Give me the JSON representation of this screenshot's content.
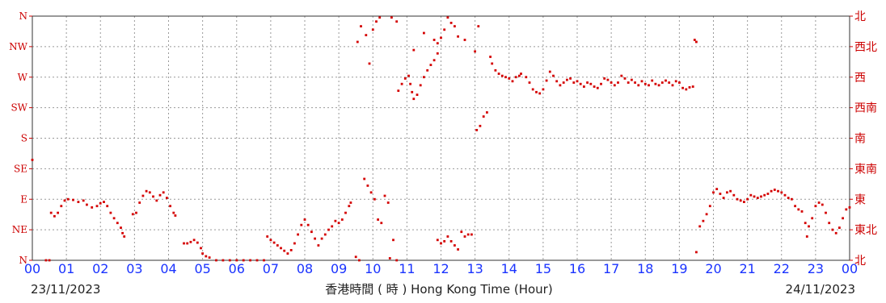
{
  "colors": {
    "series": "#d40000",
    "axis_labels": "#cc0000",
    "x_ticks": "#1a33ff",
    "grid": "#999999",
    "text": "#222222"
  },
  "footer": {
    "date_start": "23/11/2023",
    "xlabel": "香港時間 ( 時 ) Hong Kong Time (Hour)",
    "date_end": "24/11/2023"
  },
  "chart_data": {
    "type": "scatter",
    "title": "",
    "xlabel": "香港時間 ( 時 ) Hong Kong Time (Hour)",
    "ylabel": "",
    "xlim": [
      0,
      24
    ],
    "ylim": [
      0,
      360
    ],
    "grid": true,
    "x_tick_labels": [
      "00",
      "01",
      "02",
      "03",
      "04",
      "05",
      "06",
      "07",
      "08",
      "09",
      "10",
      "11",
      "12",
      "13",
      "14",
      "15",
      "16",
      "17",
      "18",
      "19",
      "20",
      "21",
      "22",
      "23",
      "00"
    ],
    "y_tick_labels_left": [
      "N",
      "NE",
      "E",
      "SE",
      "S",
      "SW",
      "W",
      "NW",
      "N"
    ],
    "y_tick_labels_right": [
      "北",
      "東北",
      "東",
      "東南",
      "南",
      "西南",
      "西",
      "西北",
      "北"
    ],
    "series": [
      {
        "color": "#d40000",
        "points": [
          [
            0.0,
            148
          ],
          [
            0.4,
            0
          ],
          [
            0.5,
            0
          ],
          [
            0.55,
            70
          ],
          [
            0.65,
            65
          ],
          [
            0.75,
            70
          ],
          [
            0.85,
            80
          ],
          [
            0.95,
            88
          ],
          [
            1.05,
            90
          ],
          [
            1.2,
            89
          ],
          [
            1.35,
            86
          ],
          [
            1.5,
            88
          ],
          [
            1.6,
            82
          ],
          [
            1.75,
            78
          ],
          [
            1.9,
            80
          ],
          [
            2.0,
            84
          ],
          [
            2.1,
            86
          ],
          [
            2.2,
            80
          ],
          [
            2.3,
            70
          ],
          [
            2.4,
            62
          ],
          [
            2.5,
            55
          ],
          [
            2.6,
            48
          ],
          [
            2.65,
            40
          ],
          [
            2.7,
            35
          ],
          [
            2.95,
            68
          ],
          [
            3.05,
            70
          ],
          [
            3.15,
            85
          ],
          [
            3.25,
            95
          ],
          [
            3.35,
            102
          ],
          [
            3.45,
            100
          ],
          [
            3.55,
            94
          ],
          [
            3.65,
            88
          ],
          [
            3.75,
            96
          ],
          [
            3.85,
            100
          ],
          [
            3.95,
            92
          ],
          [
            4.05,
            80
          ],
          [
            4.15,
            70
          ],
          [
            4.2,
            66
          ],
          [
            4.45,
            25
          ],
          [
            4.55,
            25
          ],
          [
            4.65,
            27
          ],
          [
            4.75,
            30
          ],
          [
            4.85,
            26
          ],
          [
            4.95,
            18
          ],
          [
            5.0,
            10
          ],
          [
            5.1,
            6
          ],
          [
            5.2,
            4
          ],
          [
            5.4,
            0
          ],
          [
            5.6,
            0
          ],
          [
            5.8,
            0
          ],
          [
            6.0,
            0
          ],
          [
            6.2,
            0
          ],
          [
            6.4,
            0
          ],
          [
            6.6,
            0
          ],
          [
            6.8,
            0
          ],
          [
            6.9,
            35
          ],
          [
            7.0,
            30
          ],
          [
            7.1,
            26
          ],
          [
            7.2,
            22
          ],
          [
            7.3,
            18
          ],
          [
            7.4,
            14
          ],
          [
            7.5,
            10
          ],
          [
            7.6,
            15
          ],
          [
            7.7,
            25
          ],
          [
            7.8,
            38
          ],
          [
            7.9,
            52
          ],
          [
            8.0,
            60
          ],
          [
            8.1,
            52
          ],
          [
            8.2,
            42
          ],
          [
            8.3,
            32
          ],
          [
            8.4,
            22
          ],
          [
            8.5,
            32
          ],
          [
            8.6,
            38
          ],
          [
            8.7,
            45
          ],
          [
            8.8,
            50
          ],
          [
            8.9,
            58
          ],
          [
            9.0,
            55
          ],
          [
            9.1,
            60
          ],
          [
            9.2,
            70
          ],
          [
            9.3,
            80
          ],
          [
            9.35,
            85
          ],
          [
            9.5,
            5
          ],
          [
            9.6,
            0
          ],
          [
            9.75,
            120
          ],
          [
            9.85,
            110
          ],
          [
            9.95,
            100
          ],
          [
            10.05,
            90
          ],
          [
            10.15,
            60
          ],
          [
            10.25,
            55
          ],
          [
            10.35,
            95
          ],
          [
            10.45,
            85
          ],
          [
            10.5,
            3
          ],
          [
            10.6,
            30
          ],
          [
            10.7,
            0
          ],
          [
            9.55,
            322
          ],
          [
            9.65,
            345
          ],
          [
            9.8,
            332
          ],
          [
            9.9,
            290
          ],
          [
            10.0,
            340
          ],
          [
            10.1,
            352
          ],
          [
            10.2,
            358
          ],
          [
            10.55,
            358
          ],
          [
            10.7,
            352
          ],
          [
            11.2,
            310
          ],
          [
            11.5,
            335
          ],
          [
            11.8,
            325
          ],
          [
            11.9,
            320
          ],
          [
            12.0,
            328
          ],
          [
            12.1,
            340
          ],
          [
            12.2,
            358
          ],
          [
            12.3,
            350
          ],
          [
            12.4,
            345
          ],
          [
            12.5,
            330
          ],
          [
            12.7,
            325
          ],
          [
            13.0,
            308
          ],
          [
            13.1,
            345
          ],
          [
            10.75,
            250
          ],
          [
            10.85,
            260
          ],
          [
            10.95,
            268
          ],
          [
            11.05,
            272
          ],
          [
            11.1,
            260
          ],
          [
            11.15,
            248
          ],
          [
            11.2,
            238
          ],
          [
            11.3,
            244
          ],
          [
            11.4,
            258
          ],
          [
            11.5,
            270
          ],
          [
            11.6,
            280
          ],
          [
            11.7,
            288
          ],
          [
            11.8,
            295
          ],
          [
            11.9,
            305
          ],
          [
            11.9,
            30
          ],
          [
            12.0,
            25
          ],
          [
            12.1,
            28
          ],
          [
            12.2,
            35
          ],
          [
            12.3,
            28
          ],
          [
            12.4,
            22
          ],
          [
            12.5,
            16
          ],
          [
            12.6,
            42
          ],
          [
            12.7,
            35
          ],
          [
            12.8,
            38
          ],
          [
            12.9,
            38
          ],
          [
            13.05,
            192
          ],
          [
            13.15,
            198
          ],
          [
            13.25,
            212
          ],
          [
            13.35,
            218
          ],
          [
            13.45,
            300
          ],
          [
            13.5,
            290
          ],
          [
            13.6,
            280
          ],
          [
            13.7,
            275
          ],
          [
            13.8,
            272
          ],
          [
            13.9,
            270
          ],
          [
            14.0,
            268
          ],
          [
            14.1,
            264
          ],
          [
            14.2,
            270
          ],
          [
            14.3,
            272
          ],
          [
            14.35,
            275
          ],
          [
            14.5,
            270
          ],
          [
            14.6,
            262
          ],
          [
            14.7,
            252
          ],
          [
            14.8,
            248
          ],
          [
            14.9,
            246
          ],
          [
            15.0,
            252
          ],
          [
            15.1,
            265
          ],
          [
            15.2,
            278
          ],
          [
            15.3,
            272
          ],
          [
            15.4,
            264
          ],
          [
            15.5,
            258
          ],
          [
            15.6,
            262
          ],
          [
            15.7,
            266
          ],
          [
            15.8,
            268
          ],
          [
            15.9,
            262
          ],
          [
            16.0,
            264
          ],
          [
            16.1,
            260
          ],
          [
            16.2,
            256
          ],
          [
            16.3,
            262
          ],
          [
            16.4,
            260
          ],
          [
            16.5,
            256
          ],
          [
            16.6,
            254
          ],
          [
            16.7,
            260
          ],
          [
            16.8,
            268
          ],
          [
            16.9,
            266
          ],
          [
            17.0,
            262
          ],
          [
            17.1,
            258
          ],
          [
            17.2,
            262
          ],
          [
            17.3,
            272
          ],
          [
            17.4,
            268
          ],
          [
            17.5,
            262
          ],
          [
            17.6,
            266
          ],
          [
            17.7,
            262
          ],
          [
            17.8,
            258
          ],
          [
            17.9,
            264
          ],
          [
            18.0,
            260
          ],
          [
            18.1,
            258
          ],
          [
            18.2,
            265
          ],
          [
            18.3,
            260
          ],
          [
            18.4,
            258
          ],
          [
            18.5,
            262
          ],
          [
            18.6,
            265
          ],
          [
            18.7,
            262
          ],
          [
            18.8,
            258
          ],
          [
            18.9,
            264
          ],
          [
            19.0,
            262
          ],
          [
            19.1,
            254
          ],
          [
            19.2,
            252
          ],
          [
            19.3,
            255
          ],
          [
            19.4,
            256
          ],
          [
            19.45,
            325
          ],
          [
            19.5,
            322
          ],
          [
            19.5,
            12
          ],
          [
            19.6,
            50
          ],
          [
            19.7,
            58
          ],
          [
            19.8,
            68
          ],
          [
            19.9,
            80
          ],
          [
            20.0,
            100
          ],
          [
            20.1,
            105
          ],
          [
            20.2,
            98
          ],
          [
            20.3,
            92
          ],
          [
            20.4,
            100
          ],
          [
            20.5,
            102
          ],
          [
            20.6,
            96
          ],
          [
            20.7,
            90
          ],
          [
            20.8,
            88
          ],
          [
            20.9,
            86
          ],
          [
            21.0,
            90
          ],
          [
            21.1,
            96
          ],
          [
            21.2,
            94
          ],
          [
            21.3,
            92
          ],
          [
            21.4,
            94
          ],
          [
            21.5,
            96
          ],
          [
            21.6,
            98
          ],
          [
            21.7,
            102
          ],
          [
            21.8,
            104
          ],
          [
            21.9,
            102
          ],
          [
            22.0,
            100
          ],
          [
            22.1,
            96
          ],
          [
            22.2,
            92
          ],
          [
            22.3,
            90
          ],
          [
            22.4,
            80
          ],
          [
            22.5,
            75
          ],
          [
            22.6,
            72
          ],
          [
            22.7,
            55
          ],
          [
            22.75,
            35
          ],
          [
            22.8,
            50
          ],
          [
            22.9,
            62
          ],
          [
            23.0,
            80
          ],
          [
            23.1,
            85
          ],
          [
            23.2,
            82
          ],
          [
            23.3,
            70
          ],
          [
            23.4,
            55
          ],
          [
            23.5,
            45
          ],
          [
            23.6,
            40
          ],
          [
            23.7,
            48
          ],
          [
            23.8,
            62
          ],
          [
            23.9,
            75
          ],
          [
            24.0,
            78
          ]
        ]
      }
    ]
  }
}
